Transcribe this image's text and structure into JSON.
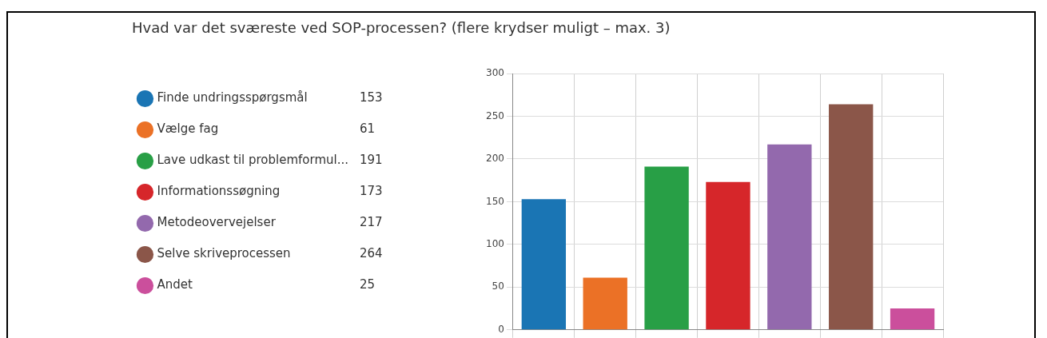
{
  "chart_data": {
    "type": "bar",
    "title": "Hvad var det sværeste ved SOP-processen? (flere krydser muligt – max. 3)",
    "categories": [
      null,
      null,
      null,
      null,
      null,
      null,
      null
    ],
    "series": [
      {
        "name": "Finde undringsspørgsmål",
        "color": "#1a75b4",
        "values": [
          153,
          null,
          null,
          null,
          null,
          null,
          null
        ]
      },
      {
        "name": "Vælge fag",
        "color": "#eb7126",
        "values": [
          null,
          61,
          null,
          null,
          null,
          null,
          null
        ]
      },
      {
        "name": "Lave udkast til problemformul...",
        "color": "#289f46",
        "values": [
          null,
          null,
          191,
          null,
          null,
          null,
          null
        ]
      },
      {
        "name": "Informationssøgning",
        "color": "#d6262a",
        "values": [
          null,
          null,
          null,
          173,
          null,
          null,
          null
        ]
      },
      {
        "name": "Metodeovervejelser",
        "color": "#9369ad",
        "values": [
          null,
          null,
          null,
          null,
          217,
          null,
          null
        ]
      },
      {
        "name": "Selve skriveprocessen",
        "color": "#8b5649",
        "values": [
          null,
          null,
          null,
          null,
          null,
          264,
          null
        ]
      },
      {
        "name": "Andet",
        "color": "#cb4f9c",
        "values": [
          null,
          null,
          null,
          null,
          null,
          null,
          25
        ]
      }
    ],
    "ylim": [
      0,
      300
    ],
    "yticks": [
      0,
      50,
      100,
      150,
      200,
      250,
      300
    ],
    "grid": true,
    "legend": "left",
    "tick_labels": "y",
    "annotations": [
      "153",
      "61",
      "191",
      "173",
      "217",
      "264",
      "25"
    ]
  }
}
